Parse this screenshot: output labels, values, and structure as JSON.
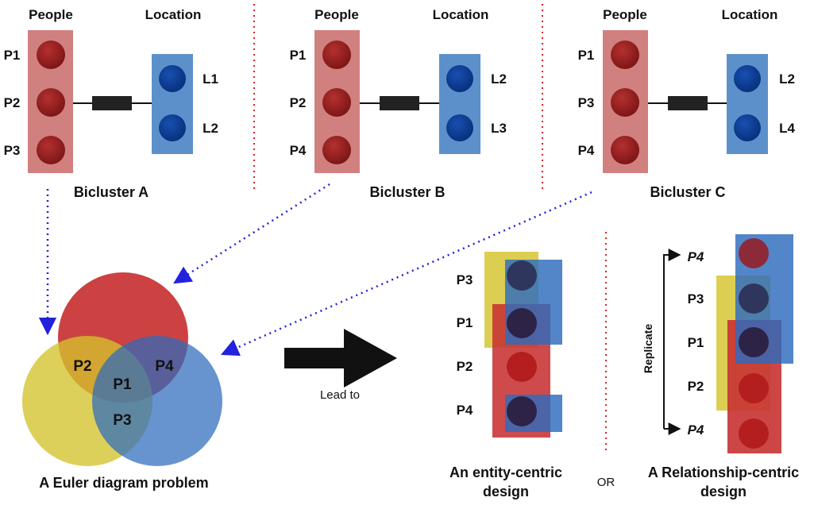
{
  "colors": {
    "people_panel": "#c96a6a",
    "location_panel": "#4a84c4",
    "person_node": "#8c1f1f",
    "location_node": "#0b3d91",
    "euler_red": "#c83232",
    "euler_yellow": "#d4c32c",
    "euler_blue": "#2d6bbd",
    "arrow_blue": "#2222dd",
    "divider_red": "#dd2222"
  },
  "biclusters": [
    {
      "people_header": "People",
      "location_header": "Location",
      "people": [
        "P1",
        "P2",
        "P3"
      ],
      "locations": [
        "L1",
        "L2"
      ],
      "caption": "Bicluster A"
    },
    {
      "people_header": "People",
      "location_header": "Location",
      "people": [
        "P1",
        "P2",
        "P4"
      ],
      "locations": [
        "L2",
        "L3"
      ],
      "caption": "Bicluster B"
    },
    {
      "people_header": "People",
      "location_header": "Location",
      "people": [
        "P1",
        "P3",
        "P4"
      ],
      "locations": [
        "L2",
        "L4"
      ],
      "caption": "Bicluster C"
    }
  ],
  "euler": {
    "labels": [
      "P2",
      "P4",
      "P1",
      "P3"
    ],
    "caption": "A Euler diagram problem"
  },
  "lead_to": "Lead to",
  "or_text": "OR",
  "entity_centric": {
    "rows": [
      "P3",
      "P1",
      "P2",
      "P4"
    ],
    "caption_line1": "An entity-centric",
    "caption_line2": "design"
  },
  "relationship_centric": {
    "rows": [
      "P4",
      "P3",
      "P1",
      "P2",
      "P4"
    ],
    "replicate": "Replicate",
    "caption_line1": "A Relationship-centric",
    "caption_line2": "design"
  }
}
